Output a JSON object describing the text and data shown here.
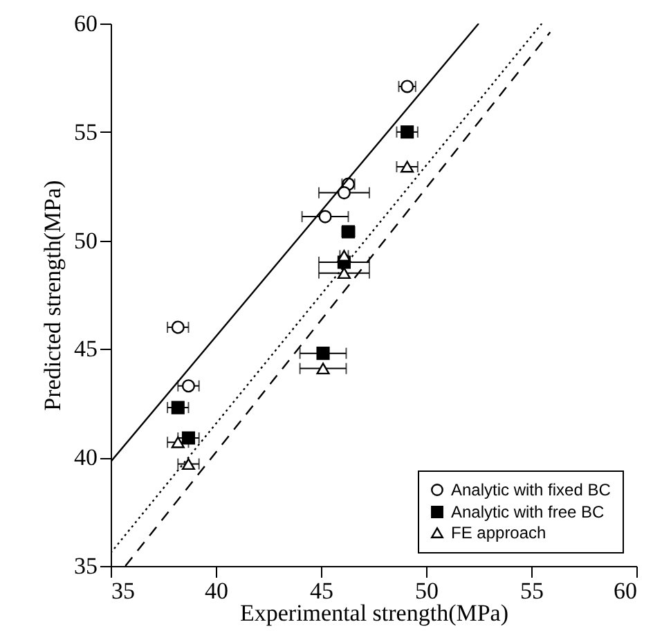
{
  "chart_data": {
    "type": "scatter",
    "xlabel": "Experimental strength(MPa)",
    "ylabel": "Predicted  strength(MPa)",
    "xlim": [
      35,
      60
    ],
    "ylim": [
      35,
      60
    ],
    "xticks": [
      35,
      40,
      45,
      50,
      55,
      60
    ],
    "yticks": [
      35,
      40,
      45,
      50,
      55,
      60
    ],
    "grid": false,
    "legend": "bottom right",
    "series": [
      {
        "name": "Analytic with fixed BC",
        "marker": "circle",
        "color": "#000000",
        "x": [
          49.1,
          46.3,
          46.1,
          45.2,
          38.2,
          38.7
        ],
        "values": [
          57.1,
          52.6,
          52.2,
          51.1,
          46.0,
          43.3
        ],
        "xerrors": [
          0.4,
          0.3,
          1.2,
          1.1,
          0.5,
          0.5
        ]
      },
      {
        "name": "Analytic with free BC",
        "marker": "square",
        "color": "#000000",
        "x": [
          49.1,
          46.3,
          46.1,
          45.1,
          38.2,
          38.7
        ],
        "values": [
          55.0,
          50.4,
          49.0,
          44.8,
          42.3,
          40.9
        ],
        "xerrors": [
          0.5,
          0.3,
          1.2,
          1.1,
          0.5,
          0.5
        ]
      },
      {
        "name": "FE approach",
        "marker": "triangle",
        "color": "#000000",
        "x": [
          49.1,
          46.1,
          46.1,
          45.1,
          38.2,
          38.7
        ],
        "values": [
          53.4,
          49.3,
          48.5,
          44.1,
          40.7,
          39.7
        ],
        "xerrors": [
          0.5,
          0.2,
          1.2,
          1.1,
          0.5,
          0.5
        ]
      },
      {
        "type": "line",
        "line_style": "solid",
        "color": "#000000",
        "x": [
          35,
          52.5
        ],
        "values": [
          39.8,
          60
        ]
      },
      {
        "type": "line",
        "line_style": "dotted",
        "color": "#000000",
        "x": [
          35,
          55.5
        ],
        "values": [
          35.6,
          60
        ]
      },
      {
        "type": "line",
        "line_style": "dashed",
        "color": "#000000",
        "x": [
          35.7,
          55.9
        ],
        "values": [
          35,
          59.6
        ]
      }
    ]
  }
}
